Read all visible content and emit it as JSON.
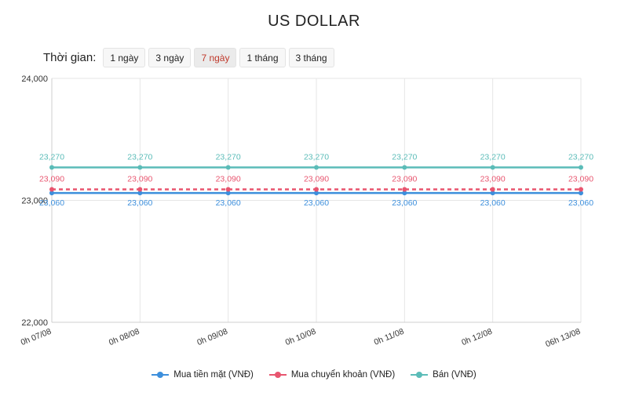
{
  "title": "US DOLLAR",
  "time_filter": {
    "label": "Thời gian:",
    "options": [
      "1 ngày",
      "3 ngày",
      "7 ngày",
      "1 tháng",
      "3 tháng"
    ],
    "selected": "7 ngày"
  },
  "chart_data": {
    "type": "line",
    "title": "US DOLLAR",
    "x": [
      "0h 07/08",
      "0h 08/08",
      "0h 09/08",
      "0h 10/08",
      "0h 11/08",
      "0h 12/08",
      "06h 13/08"
    ],
    "ylim": [
      22000,
      24000
    ],
    "yticks": [
      22000,
      23000,
      24000
    ],
    "ytick_labels": [
      "22,000",
      "23,000",
      "24,000"
    ],
    "grid": true,
    "legend_position": "bottom",
    "series": [
      {
        "name": "Mua tiền mặt (VNĐ)",
        "values": [
          23060,
          23060,
          23060,
          23060,
          23060,
          23060,
          23060
        ],
        "labels": [
          "23,060",
          "23,060",
          "23,060",
          "23,060",
          "23,060",
          "23,060",
          "23,060"
        ],
        "color": "#3d8fdc",
        "label_position": "below",
        "dashed": false
      },
      {
        "name": "Mua chuyển khoản (VNĐ)",
        "values": [
          23090,
          23090,
          23090,
          23090,
          23090,
          23090,
          23090
        ],
        "labels": [
          "23,090",
          "23,090",
          "23,090",
          "23,090",
          "23,090",
          "23,090",
          "23,090"
        ],
        "color": "#e8556f",
        "label_position": "above",
        "dashed": true
      },
      {
        "name": "Bán (VNĐ)",
        "values": [
          23270,
          23270,
          23270,
          23270,
          23270,
          23270,
          23270
        ],
        "labels": [
          "23,270",
          "23,270",
          "23,270",
          "23,270",
          "23,270",
          "23,270",
          "23,270"
        ],
        "color": "#5bbcb8",
        "label_position": "above",
        "dashed": false
      }
    ]
  }
}
